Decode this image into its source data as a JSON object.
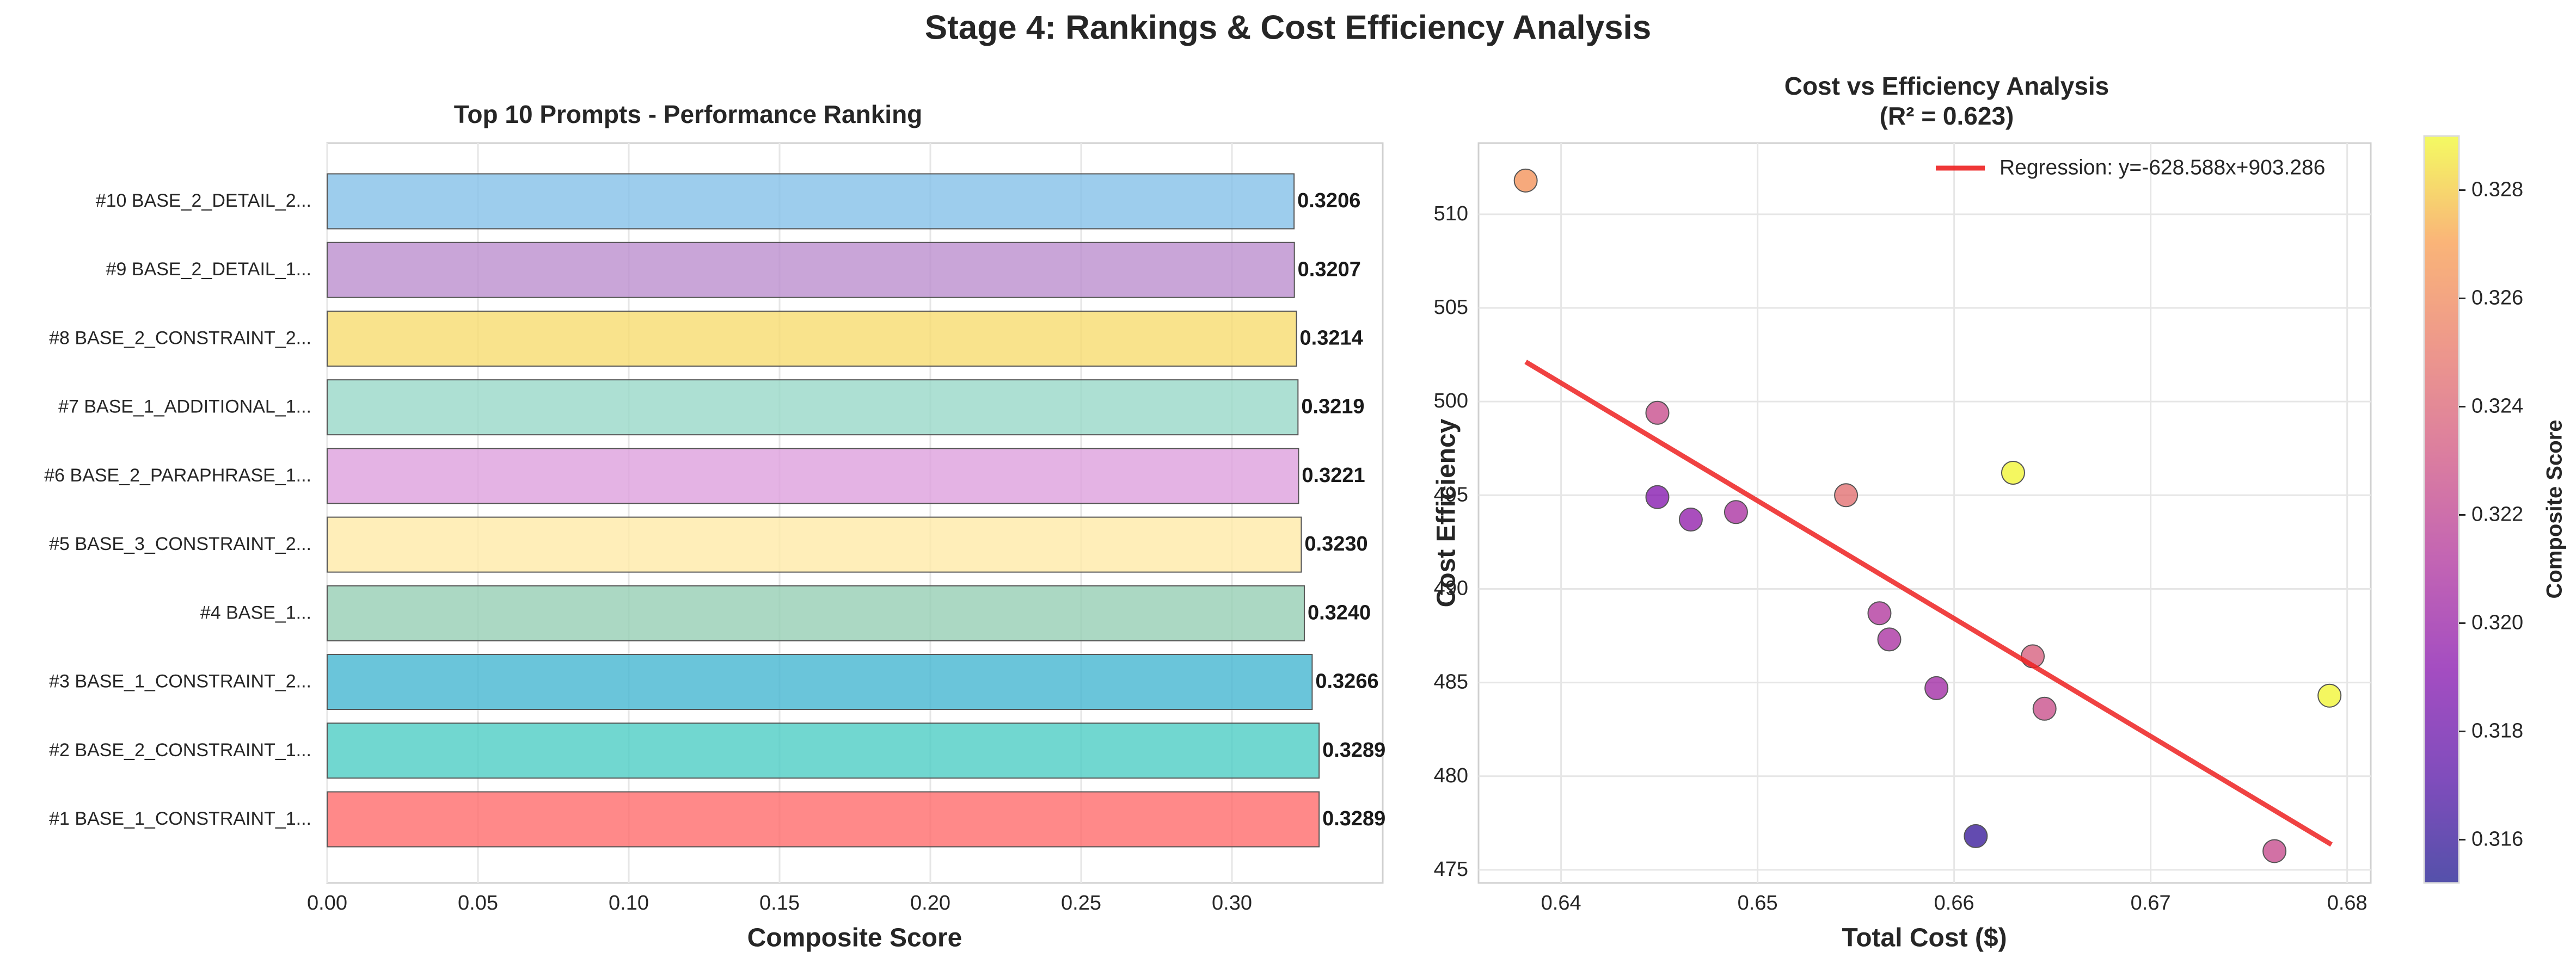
{
  "figure": {
    "suptitle": "Stage 4: Rankings & Cost Efficiency Analysis"
  },
  "chart_data": [
    {
      "type": "bar",
      "orientation": "horizontal",
      "title": "Top 10 Prompts - Performance Ranking",
      "xlabel": "Composite Score",
      "ylabel": "",
      "xlim": [
        0,
        0.35
      ],
      "xticks": [
        "0.00",
        "0.05",
        "0.10",
        "0.15",
        "0.20",
        "0.25",
        "0.30"
      ],
      "grid": true,
      "categories": [
        "#10 BASE_2_DETAIL_2...",
        "#9 BASE_2_DETAIL_1...",
        "#8 BASE_2_CONSTRAINT_2...",
        "#7 BASE_1_ADDITIONAL_1...",
        "#6 BASE_2_PARAPHRASE_1...",
        "#5 BASE_3_CONSTRAINT_2...",
        "#4 BASE_1...",
        "#3 BASE_1_CONSTRAINT_2...",
        "#2 BASE_2_CONSTRAINT_1...",
        "#1 BASE_1_CONSTRAINT_1..."
      ],
      "values": [
        0.3206,
        0.3207,
        0.3214,
        0.3219,
        0.3221,
        0.323,
        0.324,
        0.3266,
        0.3289,
        0.3289
      ],
      "value_labels": [
        "0.3206",
        "0.3207",
        "0.3214",
        "0.3219",
        "0.3221",
        "0.3230",
        "0.3240",
        "0.3266",
        "0.3289",
        "0.3289"
      ],
      "colors": [
        "#85C1E9",
        "#BB8FCE",
        "#F7DC6F",
        "#98D8C8",
        "#DDA0DD",
        "#FFEAA7",
        "#96CEB4",
        "#45B7D1",
        "#4ECDC4",
        "#FF6B6B"
      ]
    },
    {
      "type": "scatter",
      "title": "Cost vs Efficiency Analysis",
      "subtitle": "(R² = 0.623)",
      "xlabel": "Total Cost ($)",
      "ylabel": "Cost Efficiency",
      "xlim": [
        0.6358,
        0.6812
      ],
      "ylim": [
        474.3,
        513.8
      ],
      "xticks": [
        "0.64",
        "0.65",
        "0.66",
        "0.67",
        "0.68"
      ],
      "yticks": [
        "475",
        "480",
        "485",
        "490",
        "495",
        "500",
        "505",
        "510"
      ],
      "grid": true,
      "legend_position": "top-right",
      "regression": {
        "label": "Regression: y=-628.588x+903.286",
        "slope": -628.588,
        "intercept": 903.286,
        "x_range": [
          0.6382,
          0.6792
        ],
        "color": "#EE2222"
      },
      "colorbar": {
        "label": "Composite Score",
        "range": [
          0.3152,
          0.329
        ],
        "ticks": [
          "0.316",
          "0.318",
          "0.320",
          "0.322",
          "0.324",
          "0.326",
          "0.328"
        ],
        "colormap": "plasma"
      },
      "points": [
        {
          "x": 0.6382,
          "y": 511.8,
          "c": 0.3264
        },
        {
          "x": 0.6449,
          "y": 499.4,
          "c": 0.3225
        },
        {
          "x": 0.6449,
          "y": 494.9,
          "c": 0.319
        },
        {
          "x": 0.6466,
          "y": 493.7,
          "c": 0.3196
        },
        {
          "x": 0.6489,
          "y": 494.1,
          "c": 0.3208
        },
        {
          "x": 0.6545,
          "y": 495.0,
          "c": 0.3245
        },
        {
          "x": 0.6562,
          "y": 488.7,
          "c": 0.3212
        },
        {
          "x": 0.6567,
          "y": 487.3,
          "c": 0.3208
        },
        {
          "x": 0.6591,
          "y": 484.7,
          "c": 0.3204
        },
        {
          "x": 0.6611,
          "y": 476.8,
          "c": 0.316
        },
        {
          "x": 0.663,
          "y": 496.2,
          "c": 0.3289
        },
        {
          "x": 0.664,
          "y": 486.4,
          "c": 0.3236
        },
        {
          "x": 0.6646,
          "y": 483.6,
          "c": 0.3226
        },
        {
          "x": 0.6763,
          "y": 476.0,
          "c": 0.3224
        },
        {
          "x": 0.6791,
          "y": 484.3,
          "c": 0.3289
        }
      ]
    }
  ]
}
